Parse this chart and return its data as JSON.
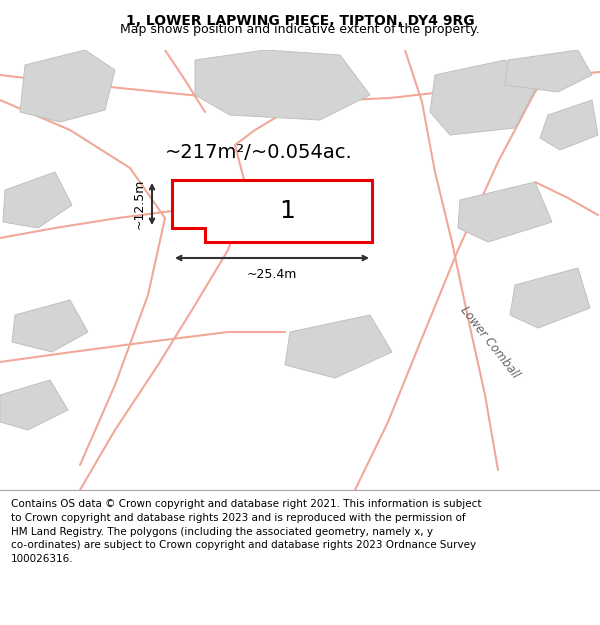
{
  "title_line1": "1, LOWER LAPWING PIECE, TIPTON, DY4 9RG",
  "title_line2": "Map shows position and indicative extent of the property.",
  "area_label": "~217m²/~0.054ac.",
  "plot_number": "1",
  "width_label": "~25.4m",
  "height_label": "~12.5m",
  "footer_lines": [
    "Contains OS data © Crown copyright and database right 2021. This information is subject",
    "to Crown copyright and database rights 2023 and is reproduced with the permission of",
    "HM Land Registry. The polygons (including the associated geometry, namely x, y",
    "co-ordinates) are subject to Crown copyright and database rights 2023 Ordnance Survey",
    "100026316."
  ],
  "map_bg": "#f5f5f5",
  "road_color": "#f0a898",
  "building_color": "#d4d4d4",
  "building_edge": "#c0c0c0",
  "plot_fill": "#ffffff",
  "plot_edge_color": "#ee0000",
  "dim_color": "#333333",
  "street_label": "Lower Comball",
  "title_fontsize": 10,
  "subtitle_fontsize": 9,
  "footer_fontsize": 7.5,
  "area_fontsize": 14,
  "dim_fontsize": 9,
  "plot_num_fontsize": 18
}
